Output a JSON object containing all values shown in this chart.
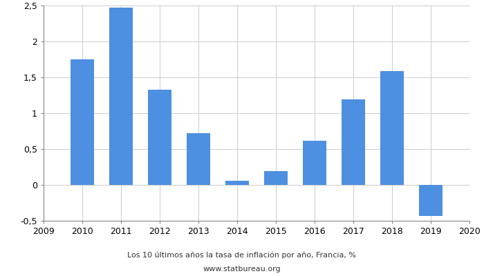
{
  "years": [
    2010,
    2011,
    2012,
    2013,
    2014,
    2015,
    2016,
    2017,
    2018,
    2019
  ],
  "values": [
    1.75,
    2.47,
    1.33,
    0.72,
    0.06,
    0.19,
    0.62,
    1.19,
    1.59,
    -0.43
  ],
  "bar_color": "#4d8fe0",
  "xlim": [
    2009,
    2020
  ],
  "ylim": [
    -0.5,
    2.5
  ],
  "yticks": [
    -0.5,
    0,
    0.5,
    1.0,
    1.5,
    2.0,
    2.5
  ],
  "xticks": [
    2009,
    2010,
    2011,
    2012,
    2013,
    2014,
    2015,
    2016,
    2017,
    2018,
    2019,
    2020
  ],
  "title_line1": "Los 10 últimos años la tasa de inflación por año, Francia, %",
  "title_line2": "www.statbureau.org",
  "background_color": "#ffffff",
  "grid_color": "#d0d0d0",
  "bar_width": 0.6
}
